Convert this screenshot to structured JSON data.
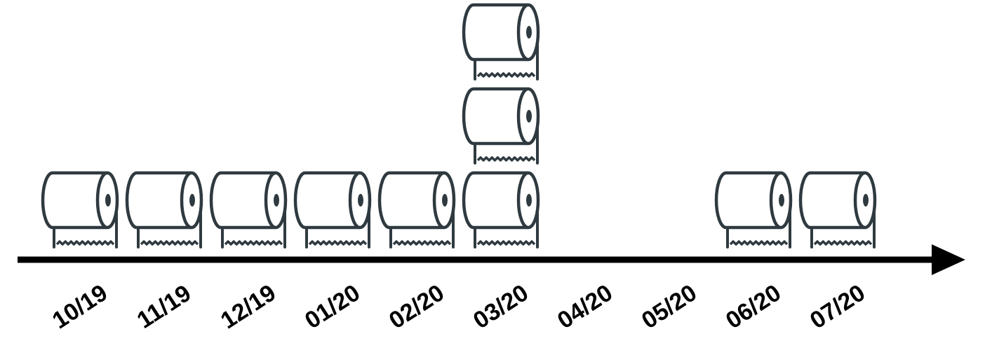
{
  "chart_data": {
    "type": "bar",
    "style": "pictograph",
    "unit_icon": "toilet-paper-roll-icon",
    "categories": [
      "10/19",
      "11/19",
      "12/19",
      "01/20",
      "02/20",
      "03/20",
      "04/20",
      "05/20",
      "06/20",
      "07/20"
    ],
    "values": [
      1,
      1,
      1,
      1,
      1,
      3,
      0,
      0,
      1,
      1
    ],
    "title": "",
    "xlabel": "",
    "ylabel": "",
    "grid": false,
    "legend": "none",
    "colors": {
      "icon_stroke": "#2f3a40",
      "icon_fill": "#ffffff",
      "axis": "#000000",
      "label": "#000000"
    }
  }
}
